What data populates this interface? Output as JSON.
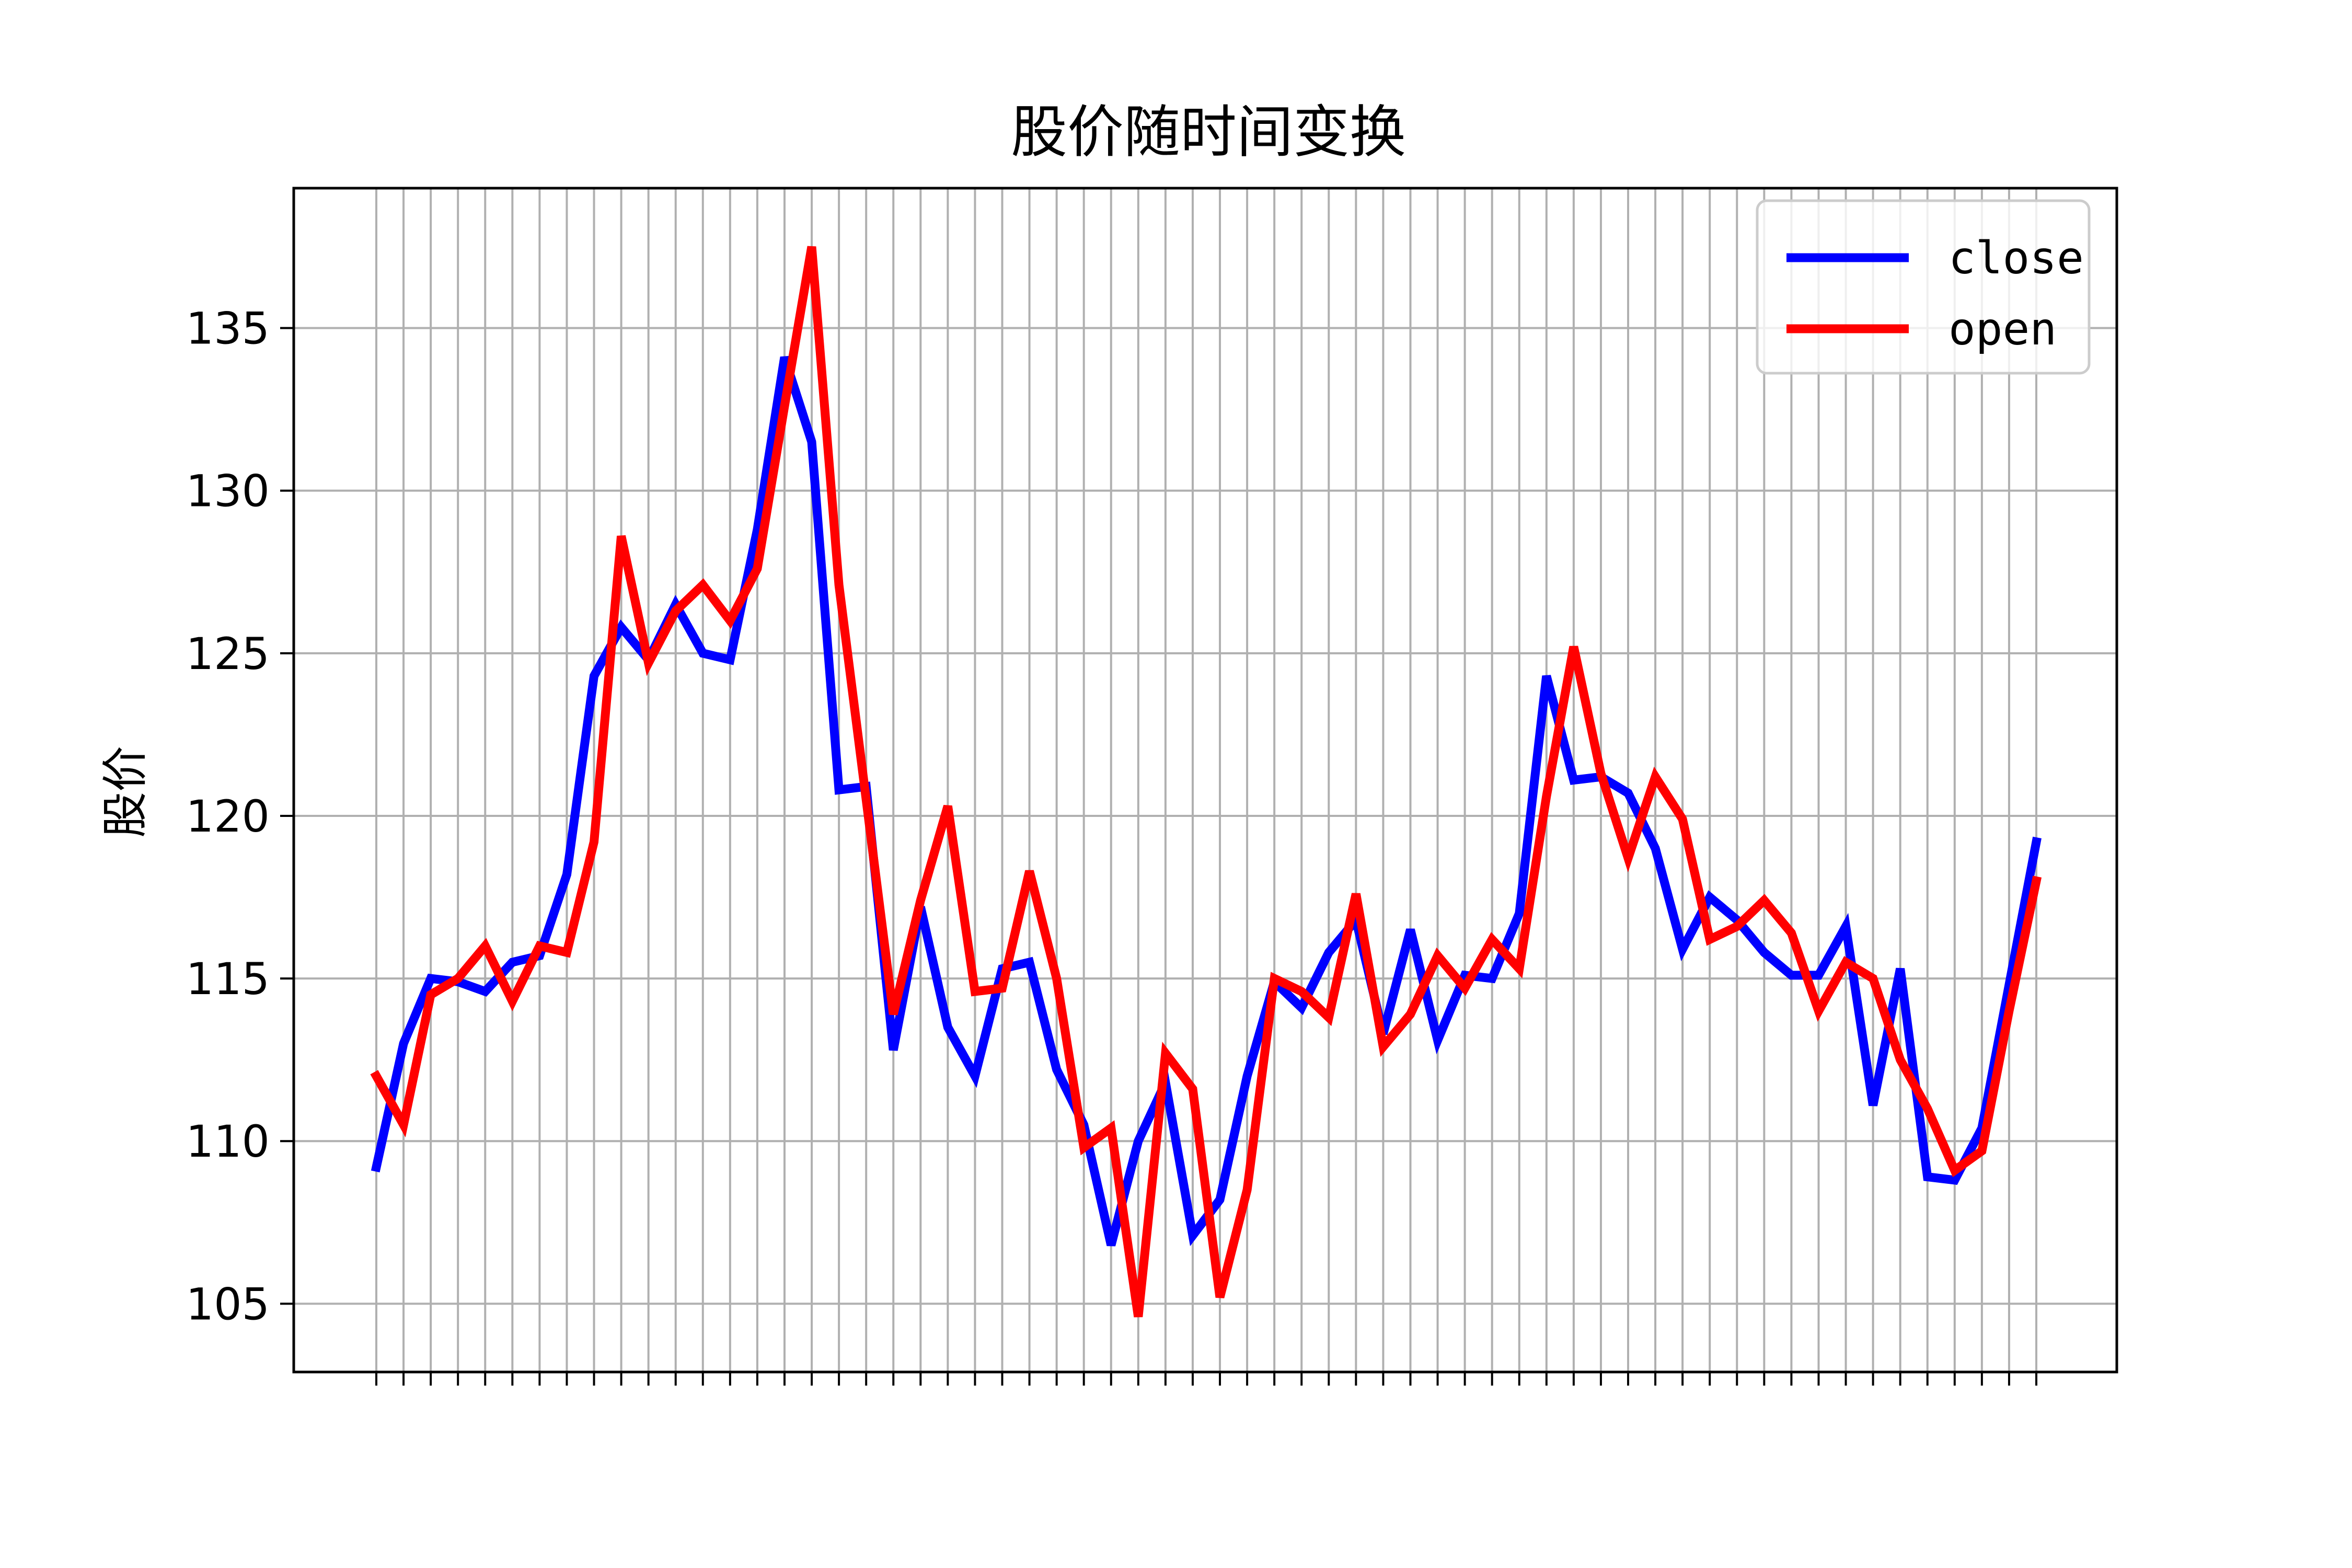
{
  "chart_data": {
    "type": "line",
    "title": "股价随时间变换",
    "xlabel": "",
    "ylabel": "股价",
    "ylim": [
      102.9,
      139.3
    ],
    "yticks": [
      105,
      110,
      115,
      120,
      125,
      130,
      135
    ],
    "grid": true,
    "legend_position": "top-right",
    "x": [
      1,
      2,
      3,
      4,
      5,
      6,
      7,
      8,
      9,
      10,
      11,
      12,
      13,
      14,
      15,
      16,
      17,
      18,
      19,
      20,
      21,
      22,
      23,
      24,
      25,
      26,
      27,
      28,
      29,
      30,
      31,
      32,
      33,
      34,
      35,
      36,
      37,
      38,
      39,
      40,
      41,
      42,
      43,
      44,
      45,
      46,
      47,
      48,
      49,
      50,
      51,
      52,
      53,
      54,
      55,
      56,
      57,
      58,
      59,
      60,
      61,
      62
    ],
    "series": [
      {
        "name": "close",
        "color": "#0000ff",
        "values": [
          109.2,
          113.0,
          115.0,
          114.9,
          114.6,
          115.5,
          115.7,
          118.2,
          124.3,
          125.8,
          124.8,
          126.5,
          125.0,
          124.8,
          128.8,
          134.1,
          131.5,
          120.8,
          120.9,
          112.8,
          117.2,
          113.5,
          112.0,
          115.3,
          115.5,
          112.2,
          110.5,
          106.8,
          110.0,
          111.8,
          107.1,
          108.2,
          112.0,
          114.9,
          114.1,
          115.8,
          116.8,
          113.3,
          116.5,
          113.1,
          115.1,
          115.0,
          117.0,
          124.3,
          121.1,
          121.2,
          120.7,
          119.0,
          115.9,
          117.5,
          116.8,
          115.8,
          115.1,
          115.1,
          116.6,
          111.1,
          115.3,
          108.9,
          108.8,
          110.4,
          114.8,
          119.2
        ]
      },
      {
        "name": "open",
        "color": "#ff0000",
        "values": [
          112.0,
          110.5,
          114.5,
          115.0,
          116.0,
          114.3,
          116.0,
          115.8,
          119.2,
          128.6,
          124.7,
          126.3,
          127.1,
          126.0,
          127.6,
          132.6,
          137.5,
          127.1,
          120.5,
          113.9,
          117.4,
          120.3,
          114.6,
          114.7,
          118.3,
          115.0,
          109.8,
          110.4,
          104.6,
          112.7,
          111.6,
          105.2,
          108.5,
          115.0,
          114.6,
          113.8,
          117.6,
          112.9,
          113.9,
          115.7,
          114.7,
          116.2,
          115.3,
          120.6,
          125.2,
          121.3,
          118.7,
          121.2,
          119.9,
          116.2,
          116.6,
          117.4,
          116.4,
          114.0,
          115.5,
          115.0,
          112.5,
          111.0,
          109.1,
          109.7,
          114.0,
          118.0
        ]
      }
    ]
  }
}
